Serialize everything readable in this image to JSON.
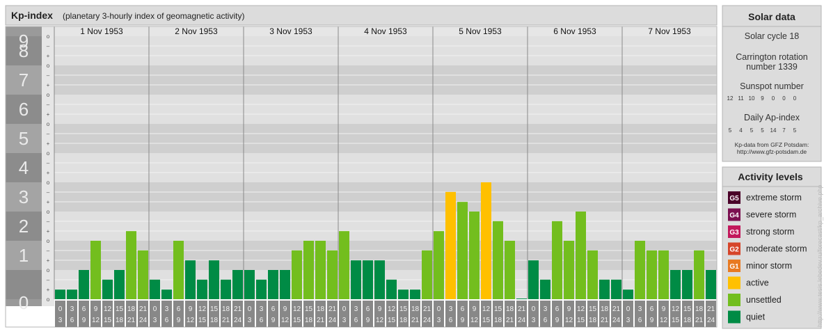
{
  "header": {
    "title": "Kp-index",
    "subtitle": "(planetary 3-hourly index of geomagnetic activity)"
  },
  "colors": {
    "quiet": "#008b45",
    "unsettled": "#73be1e",
    "active": "#ffc000",
    "minor_storm": "#e87a22",
    "moderate_storm": "#d6452a",
    "strong_storm": "#c2185b",
    "severe_storm": "#7b1050",
    "extreme_storm": "#4a0028"
  },
  "chart_data": {
    "type": "bar",
    "ylim": [
      0,
      9
    ],
    "y_ticks": [
      "0",
      "1",
      "2",
      "3",
      "4",
      "5",
      "6",
      "7",
      "8",
      "9"
    ],
    "sub_ticks": [
      "+",
      "o",
      "-"
    ],
    "days": [
      "1 Nov 1953",
      "2 Nov 1953",
      "3 Nov 1953",
      "4 Nov 1953",
      "5 Nov 1953",
      "6 Nov 1953",
      "7 Nov 1953"
    ],
    "slot_start": [
      "0",
      "3",
      "6",
      "9",
      "12",
      "15",
      "18",
      "21"
    ],
    "slot_end": [
      "3",
      "6",
      "9",
      "12",
      "15",
      "18",
      "21",
      "24"
    ],
    "values": [
      [
        0.33,
        0.33,
        1.0,
        2.0,
        0.67,
        1.0,
        2.33,
        1.67
      ],
      [
        0.67,
        0.33,
        2.0,
        1.33,
        0.67,
        1.33,
        0.67,
        1.0
      ],
      [
        1.0,
        0.67,
        1.0,
        1.0,
        1.67,
        2.0,
        2.0,
        1.67
      ],
      [
        2.33,
        1.33,
        1.33,
        1.33,
        0.67,
        0.33,
        0.33,
        1.67
      ],
      [
        2.33,
        3.67,
        3.33,
        3.0,
        4.0,
        2.67,
        2.0,
        0.0
      ],
      [
        1.33,
        0.67,
        2.67,
        2.0,
        3.0,
        1.67,
        0.67,
        0.67
      ],
      [
        0.33,
        2.0,
        1.67,
        1.67,
        1.0,
        1.0,
        1.67,
        1.0
      ]
    ],
    "categories": [
      "quiet",
      "quiet",
      "quiet",
      "unsettled",
      "quiet",
      "quiet",
      "unsettled",
      "unsettled",
      "quiet",
      "quiet",
      "unsettled",
      "quiet",
      "quiet",
      "quiet",
      "quiet",
      "quiet",
      "quiet",
      "quiet",
      "quiet",
      "quiet",
      "unsettled",
      "unsettled",
      "unsettled",
      "unsettled",
      "unsettled",
      "quiet",
      "quiet",
      "quiet",
      "quiet",
      "quiet",
      "quiet",
      "unsettled",
      "unsettled",
      "active",
      "unsettled",
      "unsettled",
      "active",
      "unsettled",
      "unsettled",
      "quiet",
      "quiet",
      "quiet",
      "unsettled",
      "unsettled",
      "unsettled",
      "unsettled",
      "quiet",
      "quiet",
      "quiet",
      "unsettled",
      "unsettled",
      "unsettled",
      "quiet",
      "quiet",
      "unsettled",
      "quiet"
    ]
  },
  "solar": {
    "title": "Solar data",
    "cycle": "Solar cycle 18",
    "carrington_line1": "Carrington rotation",
    "carrington_line2": "number 1339",
    "sunspot_title": "Sunspot number",
    "sunspot_values": [
      "12",
      "11",
      "10",
      "9",
      "0",
      "0",
      "0"
    ],
    "ap_title": "Daily Ap-index",
    "ap_values": [
      "5",
      "4",
      "5",
      "5",
      "14",
      "7",
      "5"
    ],
    "source_line1": "Kp-data from GFZ Potsdam:",
    "source_line2": "http://www.gfz-potsdam.de"
  },
  "legend": {
    "title": "Activity levels",
    "items": [
      {
        "code": "G5",
        "label": "extreme storm",
        "color": "#4a0028"
      },
      {
        "code": "G4",
        "label": "severe storm",
        "color": "#7b1050"
      },
      {
        "code": "G3",
        "label": "strong storm",
        "color": "#c2185b"
      },
      {
        "code": "G2",
        "label": "moderate storm",
        "color": "#d6452a"
      },
      {
        "code": "G1",
        "label": "minor storm",
        "color": "#e87a22"
      },
      {
        "code": "",
        "label": "active",
        "color": "#ffc000"
      },
      {
        "code": "",
        "label": "unsettled",
        "color": "#73be1e"
      },
      {
        "code": "",
        "label": "quiet",
        "color": "#008b45"
      }
    ]
  },
  "side_url": "http://www.tesis.lebedev.ru/forecast/kp_archive.php"
}
